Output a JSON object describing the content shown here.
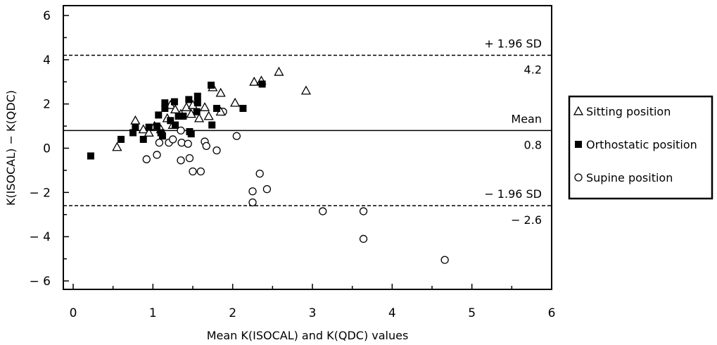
{
  "chart_data": {
    "type": "scatter",
    "title": "",
    "xlabel": "Mean K(ISOCAL) and K(QDC) values",
    "ylabel": "K(ISOCAL) − K(QDC)",
    "xlim": [
      0,
      6
    ],
    "ylim": [
      -6.4,
      6.4
    ],
    "x_ticks": [
      "0",
      "1",
      "2",
      "3",
      "4",
      "5",
      "6"
    ],
    "y_ticks": [
      "6",
      "4",
      "2",
      "0",
      "− 2",
      "− 4",
      "− 6"
    ],
    "grid": false,
    "legend_position": "right",
    "reference_lines": [
      {
        "label": "+ 1.96 SD",
        "value": 4.2,
        "value_label": "4.2",
        "style": "dashed"
      },
      {
        "label": "Mean",
        "value": 0.8,
        "value_label": "0.8",
        "style": "solid"
      },
      {
        "label": "− 1.96 SD",
        "value": -2.6,
        "value_label": "− 2.6",
        "style": "dashed"
      }
    ],
    "series": [
      {
        "name": "Sitting position",
        "marker": "open-triangle",
        "points": [
          [
            0.55,
            0.05
          ],
          [
            0.78,
            1.25
          ],
          [
            0.88,
            0.85
          ],
          [
            0.95,
            0.7
          ],
          [
            1.02,
            1.0
          ],
          [
            1.1,
            0.85
          ],
          [
            1.18,
            1.35
          ],
          [
            1.22,
            1.95
          ],
          [
            1.28,
            1.75
          ],
          [
            1.35,
            1.55
          ],
          [
            1.42,
            1.85
          ],
          [
            1.48,
            1.55
          ],
          [
            1.5,
            1.95
          ],
          [
            1.58,
            1.35
          ],
          [
            1.65,
            1.85
          ],
          [
            1.7,
            1.45
          ],
          [
            1.75,
            2.75
          ],
          [
            1.85,
            1.65
          ],
          [
            2.03,
            2.05
          ],
          [
            2.27,
            3.0
          ],
          [
            2.36,
            3.05
          ],
          [
            2.58,
            3.45
          ],
          [
            2.92,
            2.6
          ],
          [
            1.85,
            2.5
          ],
          [
            1.25,
            1.05
          ]
        ]
      },
      {
        "name": "Orthostatic position",
        "marker": "filled-square",
        "points": [
          [
            0.22,
            -0.35
          ],
          [
            0.6,
            0.4
          ],
          [
            0.75,
            0.7
          ],
          [
            0.78,
            0.95
          ],
          [
            0.88,
            0.4
          ],
          [
            0.95,
            0.95
          ],
          [
            1.05,
            1.0
          ],
          [
            1.07,
            1.5
          ],
          [
            1.1,
            0.7
          ],
          [
            1.12,
            0.55
          ],
          [
            1.15,
            2.05
          ],
          [
            1.15,
            1.8
          ],
          [
            1.22,
            1.25
          ],
          [
            1.27,
            2.1
          ],
          [
            1.28,
            1.05
          ],
          [
            1.32,
            1.45
          ],
          [
            1.38,
            1.45
          ],
          [
            1.45,
            2.2
          ],
          [
            1.46,
            0.75
          ],
          [
            1.48,
            0.65
          ],
          [
            1.55,
            1.65
          ],
          [
            1.56,
            2.35
          ],
          [
            1.56,
            2.05
          ],
          [
            1.73,
            2.85
          ],
          [
            1.74,
            1.05
          ],
          [
            1.8,
            1.8
          ],
          [
            2.13,
            1.8
          ],
          [
            2.37,
            2.9
          ]
        ]
      },
      {
        "name": "Supine position",
        "marker": "open-circle",
        "points": [
          [
            0.92,
            -0.5
          ],
          [
            1.05,
            -0.3
          ],
          [
            1.08,
            0.25
          ],
          [
            1.2,
            0.25
          ],
          [
            1.25,
            0.4
          ],
          [
            1.35,
            0.8
          ],
          [
            1.35,
            -0.55
          ],
          [
            1.36,
            0.25
          ],
          [
            1.44,
            0.2
          ],
          [
            1.46,
            -0.45
          ],
          [
            1.5,
            -1.05
          ],
          [
            1.6,
            -1.05
          ],
          [
            1.65,
            0.3
          ],
          [
            1.67,
            0.1
          ],
          [
            1.8,
            -0.1
          ],
          [
            1.88,
            1.65
          ],
          [
            2.05,
            0.55
          ],
          [
            2.25,
            -1.95
          ],
          [
            2.25,
            -2.45
          ],
          [
            2.34,
            -1.15
          ],
          [
            2.43,
            -1.85
          ],
          [
            3.13,
            -2.85
          ],
          [
            3.64,
            -2.85
          ],
          [
            3.64,
            -4.1
          ],
          [
            4.66,
            -5.05
          ]
        ]
      }
    ]
  }
}
